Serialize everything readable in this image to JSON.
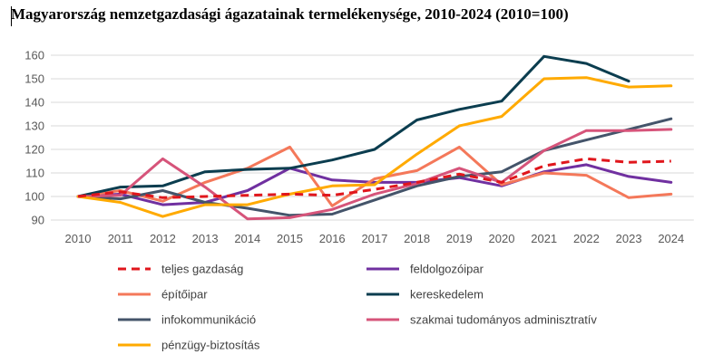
{
  "chart_data": {
    "type": "line",
    "title": "Magyarország nemzetgazdasági ágazatainak termelékenysége, 2010-2024 (2010=100)",
    "xlabel": "",
    "ylabel": "",
    "ylim": [
      90,
      160
    ],
    "yticks": [
      90,
      100,
      110,
      120,
      130,
      140,
      150,
      160
    ],
    "grid": true,
    "legend_position": "bottom",
    "categories": [
      "2010",
      "2011",
      "2012",
      "2013",
      "2014",
      "2015",
      "2016",
      "2017",
      "2018",
      "2019",
      "2020",
      "2021",
      "2022",
      "2023",
      "2024"
    ],
    "series": [
      {
        "name": "teljes gazdaság",
        "color": "#e0161c",
        "dashed": true,
        "values": [
          100,
          102,
          99.5,
          100,
          100.5,
          101,
          100.5,
          103,
          106,
          109.5,
          106,
          113,
          116,
          114.5,
          115
        ]
      },
      {
        "name": "feldolgozóipar",
        "color": "#7030a0",
        "dashed": false,
        "values": [
          100,
          101,
          96.5,
          97.5,
          102.5,
          112,
          107,
          106,
          106,
          108,
          104.5,
          110.5,
          113.5,
          108.5,
          106
        ]
      },
      {
        "name": "építőipar",
        "color": "#f4785a",
        "dashed": false,
        "values": [
          100,
          102.5,
          98,
          106,
          112,
          121,
          96,
          107.5,
          111,
          121,
          105,
          110,
          109,
          99.5,
          101
        ]
      },
      {
        "name": "kereskedelem",
        "color": "#0b3d4f",
        "dashed": false,
        "values": [
          100,
          104,
          104.5,
          110.5,
          111.5,
          112,
          115.5,
          120,
          132.5,
          137,
          140.5,
          159.5,
          156.5,
          149,
          null
        ]
      },
      {
        "name": "infokommunikáció",
        "color": "#44546a",
        "dashed": false,
        "values": [
          100,
          99,
          102.5,
          97.5,
          95,
          92,
          92.5,
          98.5,
          104.5,
          108.5,
          110.5,
          119.5,
          124,
          128.5,
          133
        ]
      },
      {
        "name": "szakmai tudományos adminisztratív",
        "color": "#d6547a",
        "dashed": false,
        "values": [
          100,
          100.5,
          116,
          104,
          90.5,
          91,
          94.5,
          101,
          105.5,
          112,
          106,
          119.5,
          128,
          128,
          128.5
        ]
      },
      {
        "name": "pénzügy-biztosítás",
        "color": "#ffaa00",
        "dashed": false,
        "values": [
          100,
          97.5,
          91.5,
          96.5,
          96.5,
          101,
          104.5,
          105,
          118,
          130,
          134,
          150,
          150.5,
          146.5,
          147
        ]
      }
    ]
  }
}
